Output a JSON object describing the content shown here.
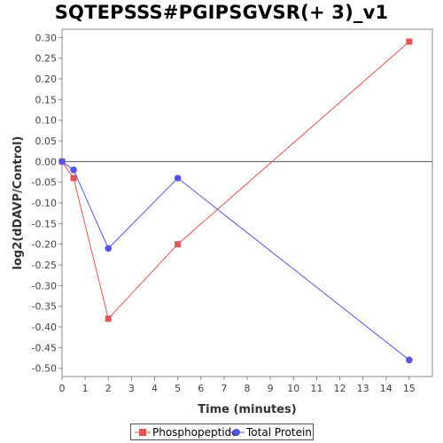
{
  "chart_data": {
    "type": "line",
    "title": "SQTEPSSS#PGIPSGVSR(+ 3)_v1",
    "xlabel": "Time (minutes)",
    "ylabel": "log2(dDAVP/Control)",
    "xlim": [
      0,
      16
    ],
    "ylim": [
      -0.52,
      0.32
    ],
    "x_ticks": [
      0,
      1,
      2,
      3,
      4,
      5,
      6,
      7,
      8,
      9,
      10,
      11,
      12,
      13,
      14,
      15
    ],
    "y_ticks": [
      0.3,
      0.25,
      0.2,
      0.15,
      0.1,
      0.05,
      0.0,
      -0.05,
      -0.1,
      -0.15,
      -0.2,
      -0.25,
      -0.3,
      -0.35,
      -0.4,
      -0.45,
      -0.5
    ],
    "y_tick_labels": [
      "0.30",
      "0.25",
      "0.20",
      "0.15",
      "0.10",
      "0.05",
      "0.00",
      "-0.05",
      "-0.10",
      "-0.15",
      "-0.20",
      "-0.25",
      "-0.30",
      "-0.35",
      "-0.40",
      "-0.45",
      "-0.50"
    ],
    "grid": false,
    "zero_line": true,
    "legend_position": "bottom",
    "series": [
      {
        "name": "Phosphopeptide",
        "color": "#e05555",
        "marker": "square",
        "x": [
          0,
          0.5,
          2,
          5,
          15
        ],
        "y": [
          0.0,
          -0.04,
          -0.38,
          -0.2,
          0.29
        ]
      },
      {
        "name": "Total Protein",
        "color": "#5555e0",
        "marker": "circle",
        "x": [
          0,
          0.5,
          2,
          5,
          15
        ],
        "y": [
          0.0,
          -0.02,
          -0.21,
          -0.04,
          -0.48
        ]
      }
    ]
  }
}
